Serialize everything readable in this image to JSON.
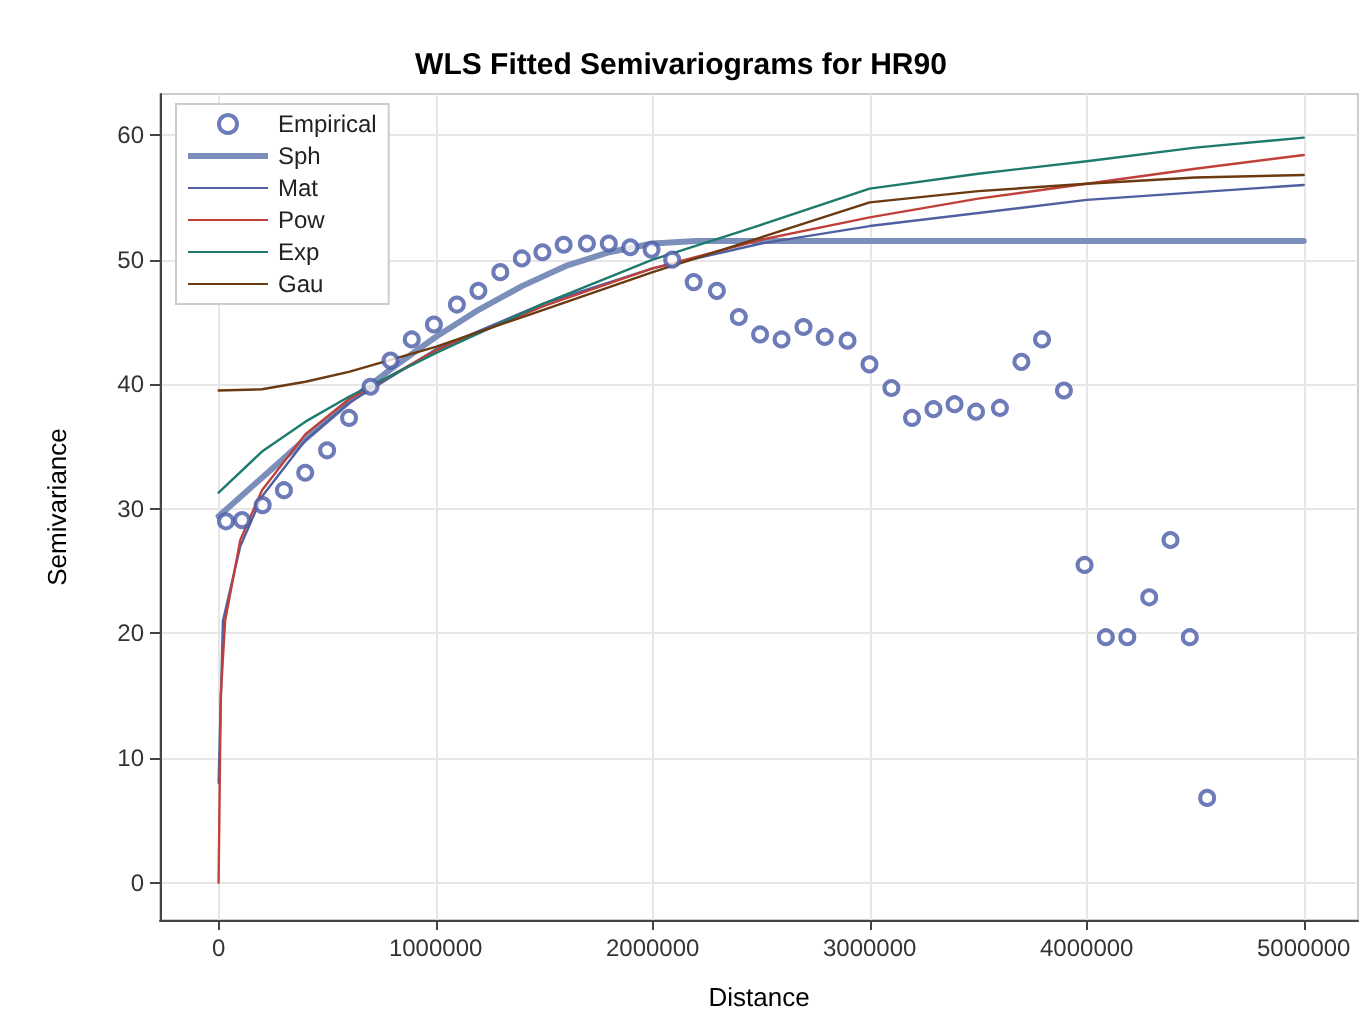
{
  "chart_data": {
    "type": "line",
    "title": "WLS Fitted Semivariograms for HR90",
    "xlabel": "Distance",
    "ylabel": "Semivariance",
    "xlim": [
      -270000,
      5250000
    ],
    "xticks": [
      0,
      1000000,
      2000000,
      3000000,
      4000000,
      5000000
    ],
    "ylim": [
      -3,
      63.3
    ],
    "yticks": [
      0,
      10,
      20,
      30,
      40,
      50,
      60
    ],
    "grid": true,
    "legend": "top left",
    "line_style": "solid",
    "series": [
      {
        "name": "Empirical",
        "type": "scatter",
        "marker": "circle",
        "color": "#4a5aa8",
        "x": [
          34000,
          108000,
          203000,
          301000,
          399000,
          500000,
          601000,
          700000,
          792000,
          890000,
          992000,
          1098000,
          1197000,
          1298000,
          1397000,
          1492000,
          1590000,
          1697000,
          1798000,
          1897000,
          1995000,
          2090000,
          2189000,
          2296000,
          2397000,
          2495000,
          2594000,
          2695000,
          2793000,
          2898000,
          2999000,
          3100000,
          3195000,
          3294000,
          3391000,
          3490000,
          3600000,
          3699000,
          3794000,
          3895000,
          3990000,
          4088000,
          4187000,
          4288000,
          4386000,
          4475000,
          4555000
        ],
        "values": [
          29.0,
          29.1,
          30.3,
          31.5,
          32.9,
          34.7,
          37.3,
          39.8,
          41.9,
          43.6,
          44.8,
          46.4,
          47.5,
          49.0,
          50.1,
          50.6,
          51.2,
          51.3,
          51.3,
          51.0,
          50.8,
          50.0,
          48.2,
          47.5,
          45.4,
          44.0,
          43.6,
          44.6,
          43.8,
          43.5,
          41.6,
          39.7,
          37.3,
          38.0,
          38.4,
          37.8,
          38.1,
          41.8,
          43.6,
          39.5,
          25.5,
          19.7,
          19.7,
          22.9,
          27.5,
          19.7,
          6.8
        ]
      },
      {
        "name": "Sph",
        "color": "#7b8fba",
        "x": [
          0,
          200000,
          400000,
          600000,
          800000,
          1000000,
          1200000,
          1400000,
          1600000,
          1800000,
          2000000,
          2200000,
          5000000
        ],
        "values": [
          29.4,
          32.5,
          35.6,
          38.6,
          41.3,
          43.8,
          46.0,
          47.9,
          49.5,
          50.6,
          51.3,
          51.5,
          51.5
        ]
      },
      {
        "name": "Mat",
        "color": "#4f5fa0",
        "x": [
          0,
          20000,
          100000,
          200000,
          400000,
          600000,
          1000000,
          1500000,
          2000000,
          2500000,
          3000000,
          4000000,
          5000000
        ],
        "values": [
          8,
          21,
          27,
          31,
          35.5,
          38.5,
          42.8,
          46.5,
          49.3,
          51.3,
          52.7,
          54.8,
          56.0
        ]
      },
      {
        "name": "Pow",
        "color": "#c0413a",
        "x": [
          0,
          10000,
          30000,
          100000,
          200000,
          400000,
          600000,
          1000000,
          1500000,
          2000000,
          2500000,
          3000000,
          3500000,
          4000000,
          4500000,
          5000000
        ],
        "values": [
          0,
          15,
          21,
          27.5,
          31.5,
          36,
          38.8,
          42.7,
          46.3,
          49.3,
          51.6,
          53.4,
          54.9,
          56.1,
          57.3,
          58.4
        ]
      },
      {
        "name": "Exp",
        "color": "#1f7a6e",
        "x": [
          0,
          200000,
          400000,
          600000,
          1000000,
          1500000,
          2000000,
          2500000,
          3000000,
          3500000,
          4000000,
          4500000,
          5000000
        ],
        "values": [
          31.3,
          34.6,
          37,
          39,
          42.5,
          46.5,
          50,
          52.8,
          55.7,
          56.9,
          57.9,
          59,
          59.8
        ]
      },
      {
        "name": "Gau",
        "color": "#6b3a10",
        "x": [
          0,
          200000,
          400000,
          600000,
          800000,
          1000000,
          1200000,
          1500000,
          2000000,
          2500000,
          3000000,
          3500000,
          4000000,
          4500000,
          5000000
        ],
        "values": [
          39.5,
          39.6,
          40.2,
          41,
          42,
          43,
          44.2,
          46,
          49,
          51.8,
          54.6,
          55.5,
          56.1,
          56.6,
          56.8
        ]
      }
    ]
  }
}
